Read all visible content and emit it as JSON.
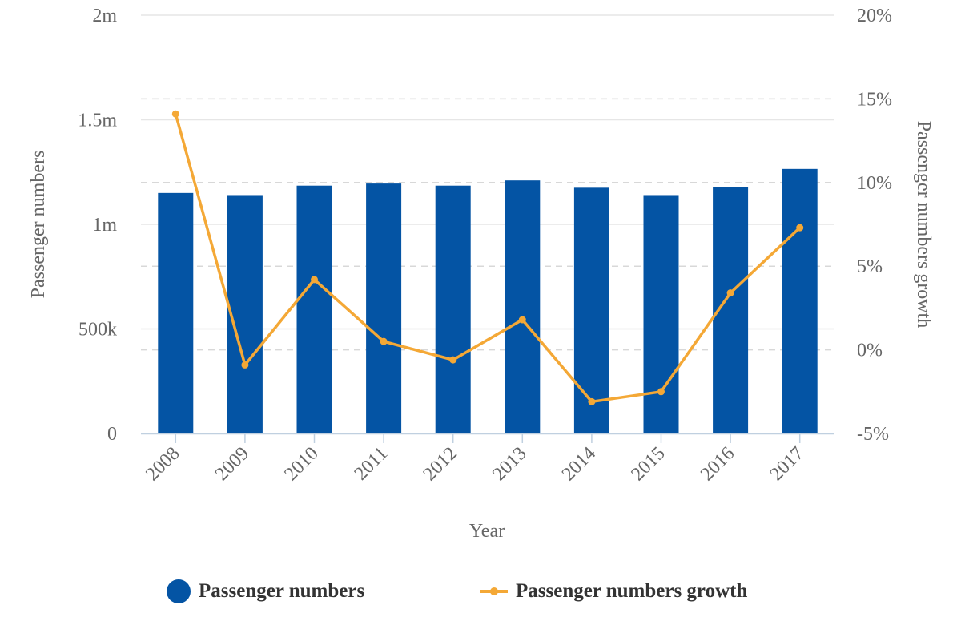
{
  "colors": {
    "bars": "#0454a4",
    "line": "#f4a836",
    "grid": "#e6e6e6",
    "grid_dashed": "#d8d8d8",
    "axis": "#c0d0e0",
    "text": "#666666"
  },
  "legend": {
    "bars_label": "Passenger numbers",
    "line_label": "Passenger numbers growth",
    "bars_icon": "circle-marker",
    "line_icon": "line-with-dot-marker"
  },
  "chart_data": {
    "type": "bar",
    "title": "",
    "xlabel": "Year",
    "ylabel": "Passenger numbers",
    "y2label": "Passenger numbers growth",
    "categories": [
      "2008",
      "2009",
      "2010",
      "2011",
      "2012",
      "2013",
      "2014",
      "2015",
      "2016",
      "2017"
    ],
    "ylim": [
      0,
      2000000
    ],
    "y_ticks": [
      0,
      500000,
      1000000,
      1500000,
      2000000
    ],
    "y_tick_labels": [
      "0",
      "500k",
      "1m",
      "1.5m",
      "2m"
    ],
    "y2lim": [
      -5,
      20
    ],
    "y2_ticks": [
      -5,
      0,
      5,
      10,
      15,
      20
    ],
    "y2_tick_labels": [
      "-5%",
      "0%",
      "5%",
      "10%",
      "15%",
      "20%"
    ],
    "grid": true,
    "legend_position": "bottom",
    "series": [
      {
        "name": "Passenger numbers",
        "type": "bar",
        "axis": "left",
        "values": [
          1150000,
          1140000,
          1185000,
          1195000,
          1185000,
          1210000,
          1175000,
          1140000,
          1180000,
          1265000
        ]
      },
      {
        "name": "Passenger numbers growth",
        "type": "line",
        "axis": "right",
        "values": [
          14.1,
          -0.9,
          4.2,
          0.5,
          -0.6,
          1.8,
          -3.1,
          -2.5,
          3.4,
          7.3
        ]
      }
    ]
  }
}
